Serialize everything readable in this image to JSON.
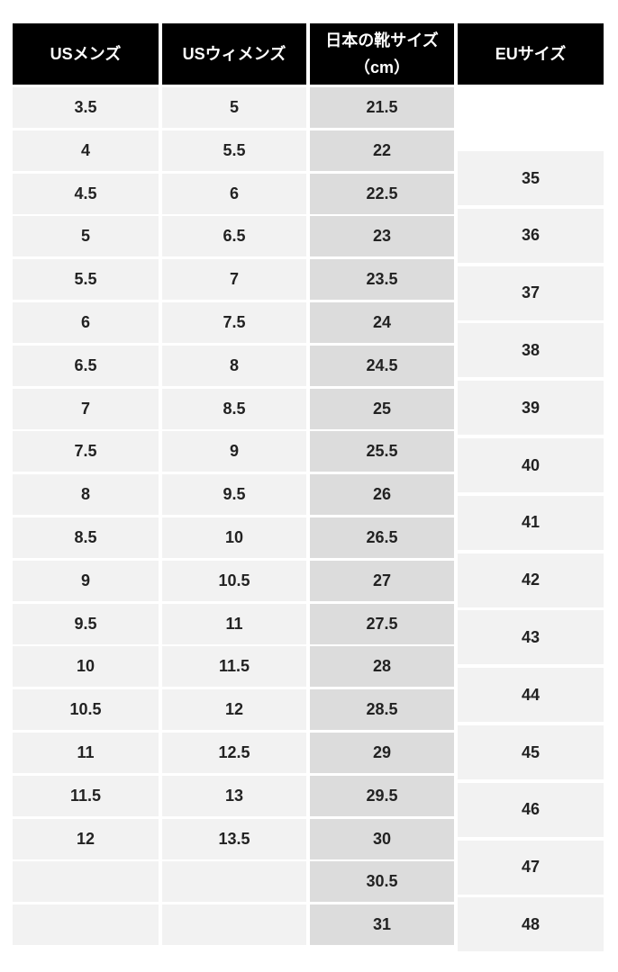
{
  "headers": [
    "USメンズ",
    "USウィメンズ",
    "日本の靴サイズ",
    "（cm）",
    "EUサイズ"
  ],
  "us_mens": [
    "3.5",
    "4",
    "4.5",
    "5",
    "5.5",
    "6",
    "6.5",
    "7",
    "7.5",
    "8",
    "8.5",
    "9",
    "9.5",
    "10",
    "10.5",
    "11",
    "11.5",
    "12",
    "",
    ""
  ],
  "us_womens": [
    "5",
    "5.5",
    "6",
    "6.5",
    "7",
    "7.5",
    "8",
    "8.5",
    "9",
    "9.5",
    "10",
    "10.5",
    "11",
    "11.5",
    "12",
    "12.5",
    "13",
    "13.5",
    "",
    ""
  ],
  "japan_cm": [
    "21.5",
    "22",
    "22.5",
    "23",
    "23.5",
    "24",
    "24.5",
    "25",
    "25.5",
    "26",
    "26.5",
    "27",
    "27.5",
    "28",
    "28.5",
    "29",
    "29.5",
    "30",
    "30.5",
    "31"
  ],
  "eu": [
    "35",
    "36",
    "37",
    "38",
    "39",
    "40",
    "41",
    "42",
    "43",
    "44",
    "45",
    "46",
    "47",
    "48"
  ],
  "colors": {
    "header_bg": "#000000",
    "cell_light": "#f2f2f2",
    "cell_dark": "#dcdcdc"
  }
}
